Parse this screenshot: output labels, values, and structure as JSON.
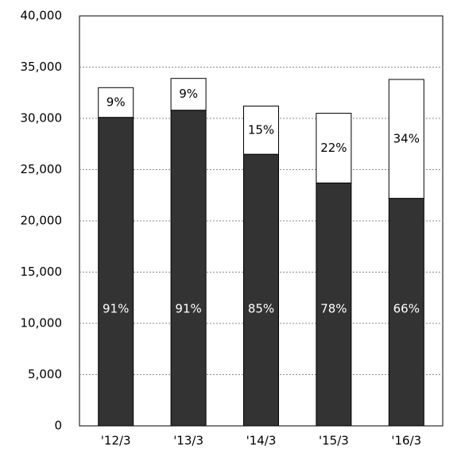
{
  "chart_data": {
    "type": "stacked-bar",
    "categories": [
      "'12/3",
      "'13/3",
      "'14/3",
      "'15/3",
      "'16/3"
    ],
    "series": [
      {
        "color": "#333333",
        "values": [
          30100,
          30800,
          26500,
          23700,
          22200
        ],
        "percent_labels": [
          "91%",
          "91%",
          "85%",
          "78%",
          "66%"
        ]
      },
      {
        "color": "#ffffff",
        "values": [
          2900,
          3100,
          4700,
          6800,
          11600
        ],
        "percent_labels": [
          "9%",
          "9%",
          "15%",
          "22%",
          "34%"
        ]
      }
    ],
    "ylim": [
      0,
      40000
    ],
    "yticks": [
      0,
      {
        "value": 5000,
        "label": "5,000"
      },
      {
        "value": 10000,
        "label": "10,000"
      },
      {
        "value": 15000,
        "label": "15,000"
      },
      {
        "value": 20000,
        "label": "20,000"
      },
      {
        "value": 25000,
        "label": "25,000"
      },
      {
        "value": 30000,
        "label": "30,000"
      },
      {
        "value": 35000,
        "label": "35,000"
      },
      {
        "value": 40000,
        "label": "40,000"
      }
    ],
    "grid": true
  }
}
